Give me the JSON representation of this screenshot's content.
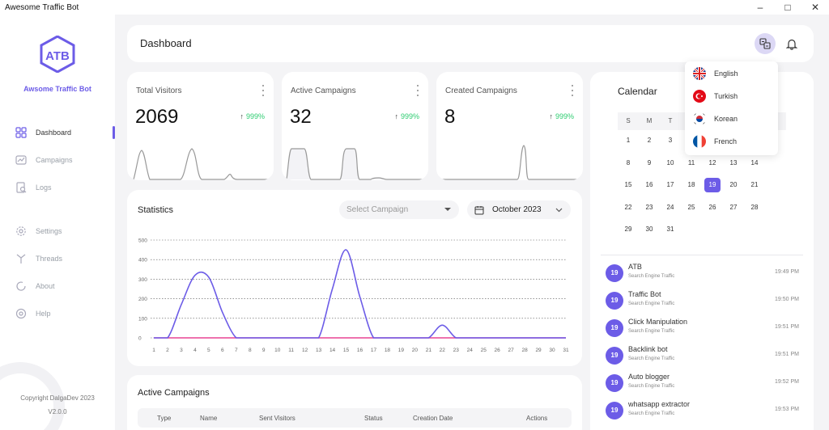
{
  "window": {
    "title": "Awesome Traffic Bot"
  },
  "brand": {
    "name": "Awsome Traffic Bot",
    "copyright": "Copyright DalgaDev 2023",
    "version": "V2.0.0",
    "accent": "#6c5ce7"
  },
  "nav": [
    {
      "label": "Dashboard",
      "icon": "dashboard-icon",
      "active": true
    },
    {
      "label": "Campaigns",
      "icon": "campaigns-icon"
    },
    {
      "label": "Logs",
      "icon": "logs-icon"
    },
    {
      "label": "Settings",
      "icon": "gear-icon"
    },
    {
      "label": "Threads",
      "icon": "threads-icon"
    },
    {
      "label": "About",
      "icon": "about-icon"
    },
    {
      "label": "Help",
      "icon": "help-icon"
    }
  ],
  "header": {
    "title": "Dashboard"
  },
  "stats": [
    {
      "label": "Total Visitors",
      "value": "2069",
      "change": "999%"
    },
    {
      "label": "Active Campaigns",
      "value": "32",
      "change": "999%"
    },
    {
      "label": "Created Campaigns",
      "value": "8",
      "change": "999%"
    }
  ],
  "statistics": {
    "title": "Statistics",
    "select_placeholder": "Select Campaign",
    "month": "October 2023",
    "chart_data": {
      "type": "line",
      "x": [
        1,
        2,
        3,
        4,
        5,
        6,
        7,
        8,
        9,
        10,
        11,
        12,
        13,
        14,
        15,
        16,
        17,
        18,
        19,
        20,
        21,
        22,
        23,
        24,
        25,
        26,
        27,
        28,
        29,
        30,
        31
      ],
      "yticks": [
        0,
        100,
        200,
        300,
        400,
        500
      ],
      "ylim": [
        0,
        500
      ],
      "grid": true,
      "series": [
        {
          "color": "#6c5ce7",
          "values": [
            0,
            0,
            170,
            320,
            310,
            130,
            0,
            0,
            0,
            0,
            0,
            0,
            0,
            250,
            450,
            210,
            0,
            0,
            0,
            0,
            0,
            65,
            0,
            0,
            0,
            0,
            0,
            0,
            0,
            0,
            0
          ]
        },
        {
          "color": "#e84393",
          "values": [
            0,
            0,
            0,
            0,
            0,
            0,
            0,
            0,
            0,
            0,
            0,
            0,
            0,
            0,
            0,
            0,
            0,
            0,
            0,
            0,
            0,
            0,
            0,
            0,
            0,
            0,
            0,
            0,
            0,
            0,
            0
          ]
        }
      ]
    }
  },
  "campaigns": {
    "title": "Active Campaigns",
    "columns": [
      "Type",
      "Name",
      "Sent Visitors",
      "Status",
      "Creation Date",
      "Actions"
    ]
  },
  "calendar": {
    "title": "Calendar",
    "weekdays": [
      "S",
      "M",
      "T",
      "W",
      "T",
      "F",
      "S"
    ],
    "first_weekday": 0,
    "days_in_month": 31,
    "selected": 19
  },
  "events": [
    {
      "day": "19",
      "name": "ATB",
      "sub": "Search Engine Traffic",
      "time": "19:49 PM"
    },
    {
      "day": "19",
      "name": "Traffic Bot",
      "sub": "Search Engine Traffic",
      "time": "19:50 PM"
    },
    {
      "day": "19",
      "name": "Click Manipulation",
      "sub": "Search Engine Traffic",
      "time": "19:51 PM"
    },
    {
      "day": "19",
      "name": "Backlink bot",
      "sub": "Search Engine Traffic",
      "time": "19:51 PM"
    },
    {
      "day": "19",
      "name": "Auto blogger",
      "sub": "Search Engine Traffic",
      "time": "19:52 PM"
    },
    {
      "day": "19",
      "name": "whatsapp extractor",
      "sub": "Search Engine Traffic",
      "time": "19:53 PM"
    }
  ],
  "languages": [
    {
      "name": "English",
      "flag": "uk-flag-icon"
    },
    {
      "name": "Turkish",
      "flag": "turkey-flag-icon"
    },
    {
      "name": "Korean",
      "flag": "korea-flag-icon"
    },
    {
      "name": "French",
      "flag": "france-flag-icon"
    }
  ]
}
